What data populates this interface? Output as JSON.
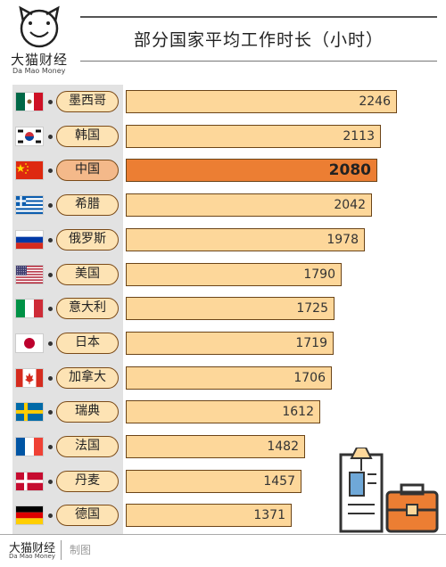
{
  "logo": {
    "cn": "大猫财经",
    "en": "Da Mao Money"
  },
  "title": "部分国家平均工作时长（小时）",
  "footer": {
    "cn": "大猫财经",
    "en": "Da Mao Money",
    "made": "制图"
  },
  "colors": {
    "bar": "#fdd79a",
    "bar_highlight": "#ec7e33",
    "pill": "#fde3b4",
    "border": "#6b4418",
    "panel": "#e2e2e2"
  },
  "chart_data": {
    "type": "bar",
    "orientation": "horizontal",
    "title": "部分国家平均工作时长（小时）",
    "categories": [
      "墨西哥",
      "韩国",
      "中国",
      "希腊",
      "俄罗斯",
      "美国",
      "意大利",
      "日本",
      "加拿大",
      "瑞典",
      "法国",
      "丹麦",
      "德国"
    ],
    "values": [
      2246,
      2113,
      2080,
      2042,
      1978,
      1790,
      1725,
      1719,
      1706,
      1612,
      1482,
      1457,
      1371
    ],
    "value_labels": [
      "2246",
      "2113",
      "2080",
      "2042",
      "1978",
      "1790",
      "1725",
      "1719",
      "1706",
      "1612",
      "1482",
      "1457",
      "1371"
    ],
    "flags": [
      "mexico-flag",
      "south-korea-flag",
      "china-flag",
      "greece-flag",
      "russia-flag",
      "usa-flag",
      "italy-flag",
      "japan-flag",
      "canada-flag",
      "sweden-flag",
      "france-flag",
      "denmark-flag",
      "germany-flag"
    ],
    "highlight": "中国",
    "grid": false,
    "legend": "none"
  }
}
